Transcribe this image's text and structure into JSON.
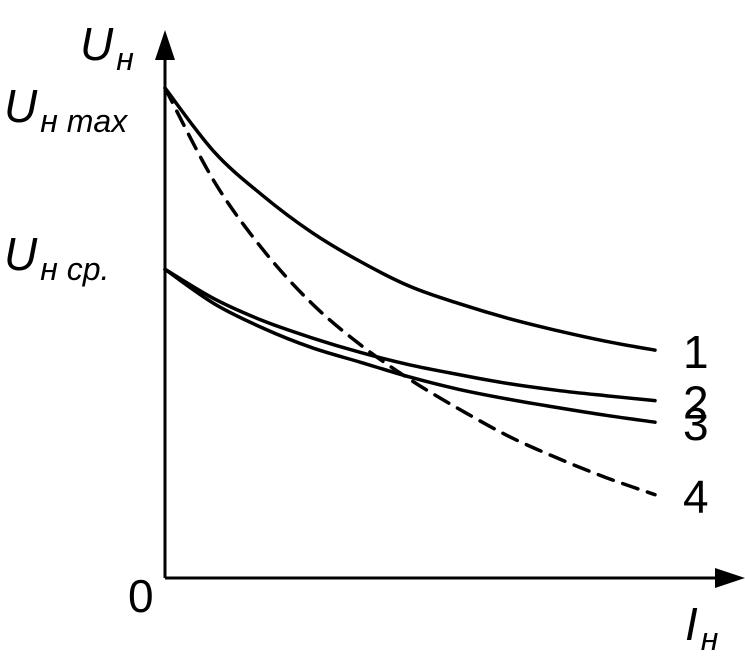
{
  "chart_data": {
    "type": "line",
    "x_axis": {
      "label_main": "I",
      "label_sub": "н"
    },
    "y_axis": {
      "label_main": "U",
      "label_sub": "н"
    },
    "origin_label": "0",
    "xlim": [
      0,
      1
    ],
    "ylim": [
      0,
      1
    ],
    "y_ticks": [
      {
        "value": 1.0,
        "label_main": "U",
        "label_sub": "н max"
      },
      {
        "value": 0.63,
        "label_main": "U",
        "label_sub": "н ср."
      }
    ],
    "colors": {
      "line": "#000000",
      "axis": "#000000"
    },
    "series": [
      {
        "name": "1",
        "style": "solid",
        "x": [
          0,
          0.1,
          0.2,
          0.3,
          0.4,
          0.5,
          0.6,
          0.7,
          0.8,
          0.9,
          1.0
        ],
        "y": [
          1.0,
          0.87,
          0.78,
          0.705,
          0.645,
          0.595,
          0.56,
          0.53,
          0.505,
          0.483,
          0.465
        ]
      },
      {
        "name": "2",
        "style": "solid",
        "x": [
          0,
          0.1,
          0.2,
          0.3,
          0.4,
          0.5,
          0.6,
          0.7,
          0.8,
          0.9,
          1.0
        ],
        "y": [
          0.63,
          0.57,
          0.525,
          0.49,
          0.46,
          0.435,
          0.415,
          0.397,
          0.383,
          0.372,
          0.362
        ]
      },
      {
        "name": "3",
        "style": "solid",
        "x": [
          0,
          0.1,
          0.2,
          0.3,
          0.4,
          0.5,
          0.6,
          0.7,
          0.8,
          0.9,
          1.0
        ],
        "y": [
          0.63,
          0.56,
          0.51,
          0.47,
          0.44,
          0.41,
          0.385,
          0.365,
          0.348,
          0.332,
          0.318
        ]
      },
      {
        "name": "4",
        "style": "dashed",
        "x": [
          0,
          0.1,
          0.2,
          0.3,
          0.4,
          0.5,
          0.6,
          0.7,
          0.8,
          0.9,
          1.0
        ],
        "y": [
          1.0,
          0.81,
          0.67,
          0.56,
          0.475,
          0.405,
          0.345,
          0.29,
          0.245,
          0.205,
          0.17
        ]
      }
    ]
  }
}
